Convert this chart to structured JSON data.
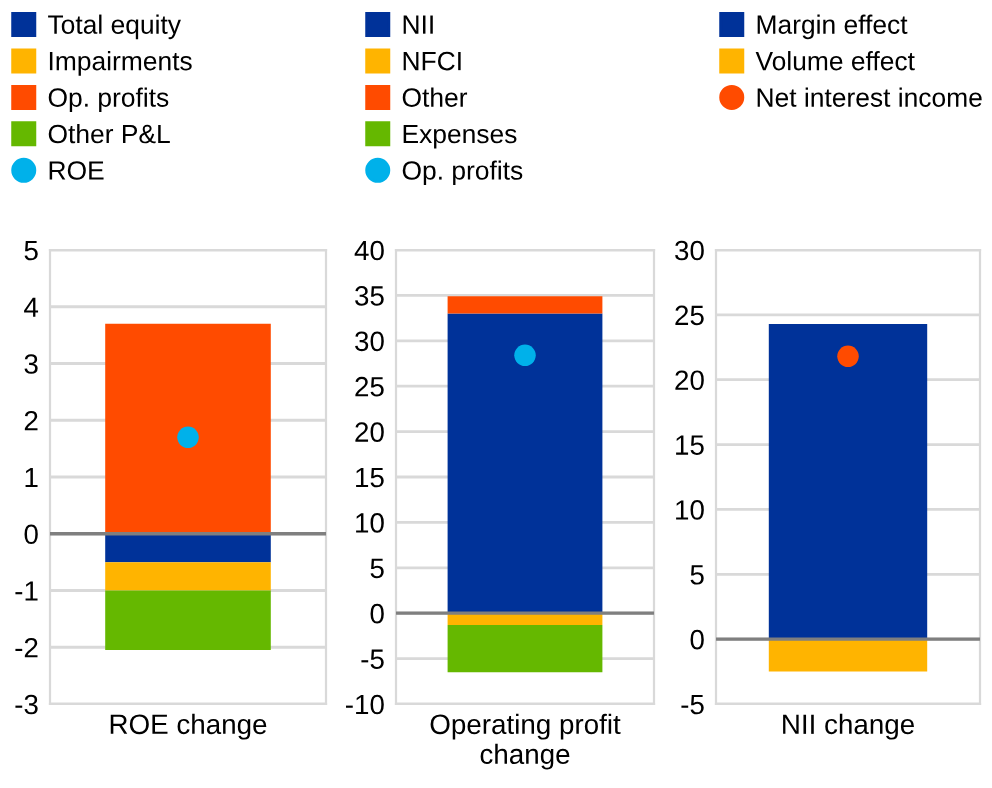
{
  "chart_data": [
    {
      "type": "bar",
      "stacked": true,
      "categories": [
        "ROE change"
      ],
      "ylim": [
        -3,
        5
      ],
      "yticks": [
        -3,
        -2,
        -1,
        0,
        1,
        2,
        3,
        4,
        5
      ],
      "grid": "y",
      "legend": "top",
      "ref_lines": [
        {
          "axis": "y",
          "value": 0,
          "color": "#7f7f7f"
        }
      ],
      "series": [
        {
          "name": "Total equity",
          "color": "#003299",
          "values": [
            -0.5
          ]
        },
        {
          "name": "Impairments",
          "color": "#ffb400",
          "values": [
            -0.5
          ]
        },
        {
          "name": "Op. profits",
          "color": "#ff4b00",
          "values": [
            3.7
          ]
        },
        {
          "name": "Other P&L",
          "color": "#65b800",
          "values": [
            -1.05
          ]
        },
        {
          "name": "ROE",
          "type": "scatter",
          "marker": "circle",
          "color": "#00b1ea",
          "x": [
            "ROE change"
          ],
          "values": [
            1.7
          ]
        }
      ]
    },
    {
      "type": "bar",
      "stacked": true,
      "categories": [
        "Operating profit\nchange"
      ],
      "ylim": [
        -10,
        40
      ],
      "yticks": [
        -10,
        -5,
        0,
        5,
        10,
        15,
        20,
        25,
        30,
        35,
        40
      ],
      "grid": "y",
      "legend": "top",
      "ref_lines": [
        {
          "axis": "y",
          "value": 0,
          "color": "#7f7f7f"
        }
      ],
      "series": [
        {
          "name": "NII",
          "color": "#003299",
          "values": [
            33
          ]
        },
        {
          "name": "NFCI",
          "color": "#ffb400",
          "values": [
            -1.3
          ]
        },
        {
          "name": "Other",
          "color": "#ff4b00",
          "values": [
            1.9
          ]
        },
        {
          "name": "Expenses",
          "color": "#65b800",
          "values": [
            -5.2
          ]
        },
        {
          "name": "Op. profits",
          "type": "scatter",
          "marker": "circle",
          "color": "#00b1ea",
          "x": [
            "Operating profit\nchange"
          ],
          "values": [
            28.4
          ]
        }
      ]
    },
    {
      "type": "bar",
      "stacked": true,
      "categories": [
        "NII change"
      ],
      "ylim": [
        -5,
        30
      ],
      "yticks": [
        -5,
        0,
        5,
        10,
        15,
        20,
        25,
        30
      ],
      "grid": "y",
      "legend": "top",
      "ref_lines": [
        {
          "axis": "y",
          "value": 0,
          "color": "#7f7f7f"
        }
      ],
      "series": [
        {
          "name": "Margin effect",
          "color": "#003299",
          "values": [
            24.3
          ]
        },
        {
          "name": "Volume effect",
          "color": "#ffb400",
          "values": [
            -2.5
          ]
        },
        {
          "name": "Net interest income",
          "type": "scatter",
          "marker": "circle",
          "color": "#ff4b00",
          "x": [
            "NII change"
          ],
          "values": [
            21.8
          ]
        }
      ]
    }
  ]
}
